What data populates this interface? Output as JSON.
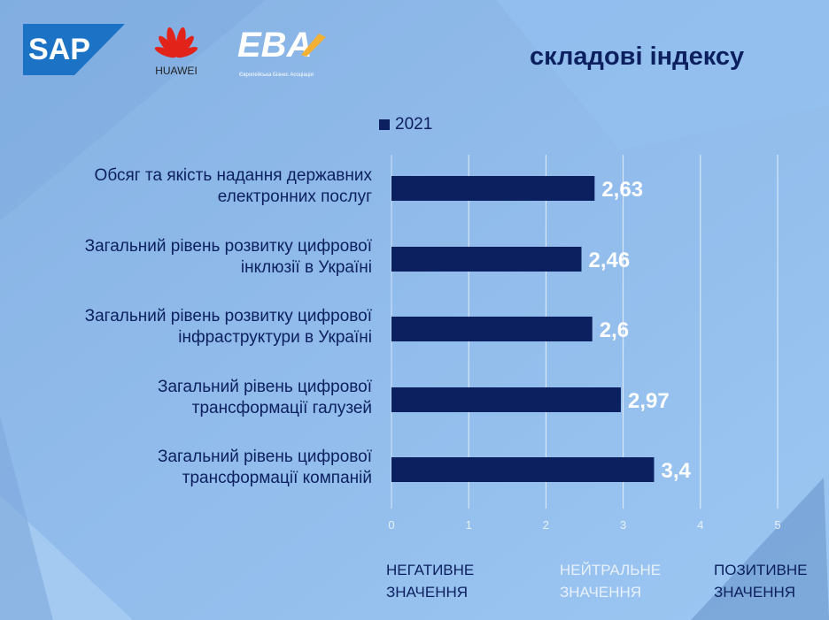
{
  "header": {
    "title": "складові індексу",
    "logos": [
      "SAP",
      "HUAWEI",
      "EBA Європейська Бізнес Асоціація"
    ]
  },
  "zones": [
    {
      "line1": "НЕГАТИВНЕ",
      "line2": "ЗНАЧЕННЯ",
      "color": "#0c1f5e"
    },
    {
      "line1": "НЕЙТРАЛЬНЕ",
      "line2": "ЗНАЧЕННЯ",
      "color": "#e8f1fb"
    },
    {
      "line1": "ПОЗИТИВНЕ",
      "line2": "ЗНАЧЕННЯ",
      "color": "#0c1f5e"
    }
  ],
  "chart_data": {
    "type": "bar",
    "orientation": "horizontal",
    "categories": [
      [
        "Обсяг та якість надання державних",
        "електронних послуг"
      ],
      [
        "Загальний рівень розвитку цифрової",
        "інклюзії в Україні"
      ],
      [
        "Загальний рівень розвитку цифрової",
        "інфраструктури в Україні"
      ],
      [
        "Загальний рівень цифрової",
        "трансформації галузей"
      ],
      [
        "Загальний рівень цифрової",
        "трансформації компаній"
      ]
    ],
    "series": [
      {
        "name": "2021",
        "values": [
          2.63,
          2.46,
          2.6,
          2.97,
          3.4
        ],
        "labels": [
          "2,63",
          "2,46",
          "2,6",
          "2,97",
          "3,4"
        ],
        "color": "#0c1f5e"
      }
    ],
    "xlim": [
      0,
      5
    ],
    "xticks": [
      "0",
      "1",
      "2",
      "3",
      "4",
      "5"
    ],
    "grid": true,
    "legend": "top"
  }
}
